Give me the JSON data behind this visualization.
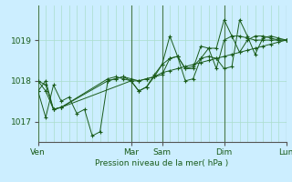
{
  "title": "Pression niveau de la mer( hPa )",
  "bg_color": "#cceeff",
  "grid_color": "#aaddcc",
  "line_color": "#1a5c1a",
  "sep_color": "#4a7a4a",
  "ylim": [
    1016.5,
    1019.85
  ],
  "yticks": [
    1017,
    1018,
    1019
  ],
  "day_labels": [
    "Ven",
    "Mar",
    "Sam",
    "Dim",
    "Lun"
  ],
  "day_positions": [
    0.0,
    0.375,
    0.5,
    0.75,
    1.0
  ],
  "n_steps": 32,
  "series": [
    {
      "x": [
        0,
        1,
        2,
        3,
        4,
        5,
        6,
        7,
        8,
        9,
        10,
        11,
        12,
        13,
        14,
        15,
        16,
        17,
        18,
        19,
        20,
        21,
        22,
        23,
        24,
        25,
        26,
        27,
        28,
        29,
        30,
        31,
        32
      ],
      "y": [
        1017.75,
        1017.1,
        1017.9,
        1017.5,
        1017.6,
        1017.2,
        1017.3,
        1016.65,
        1016.75,
        1018.0,
        1018.05,
        1018.1,
        1018.0,
        1017.75,
        1017.85,
        1018.1,
        1018.4,
        1019.1,
        1018.6,
        1018.0,
        1018.05,
        1018.55,
        1018.6,
        1018.55,
        1018.3,
        1018.35,
        1019.5,
        1019.1,
        1018.65,
        1019.05,
        1019.1,
        1019.05,
        1019.0
      ]
    },
    {
      "x": [
        0,
        1,
        2,
        3,
        12,
        13,
        14,
        15,
        16,
        17,
        18,
        19,
        20,
        21,
        22,
        23,
        24,
        25,
        26,
        27,
        28,
        29,
        30,
        31,
        32
      ],
      "y": [
        1018.0,
        1017.9,
        1017.3,
        1017.35,
        1018.0,
        1017.75,
        1017.85,
        1018.15,
        1018.4,
        1018.55,
        1018.6,
        1018.3,
        1018.35,
        1018.55,
        1018.8,
        1018.8,
        1019.5,
        1019.1,
        1018.7,
        1019.0,
        1019.1,
        1019.1,
        1019.05,
        1019.0,
        1019.0
      ]
    },
    {
      "x": [
        0,
        1,
        2,
        3,
        9,
        10,
        11,
        12,
        13,
        14,
        15,
        16,
        17,
        18,
        19,
        20,
        21,
        22,
        23,
        24,
        25,
        26,
        27,
        28,
        29,
        30,
        31,
        32
      ],
      "y": [
        1018.0,
        1017.75,
        1017.3,
        1017.35,
        1018.05,
        1018.1,
        1018.05,
        1018.0,
        1018.0,
        1018.05,
        1018.1,
        1018.15,
        1018.55,
        1018.6,
        1018.3,
        1018.3,
        1018.85,
        1018.8,
        1018.3,
        1019.0,
        1019.1,
        1019.1,
        1019.05,
        1019.0,
        1019.0,
        1019.0,
        1019.0,
        1019.0
      ]
    },
    {
      "x": [
        0,
        1,
        2,
        3,
        9,
        10,
        11,
        12,
        13,
        14,
        15,
        16,
        17,
        18,
        19,
        20,
        21,
        22,
        23,
        24,
        25,
        26,
        27,
        28,
        29,
        30,
        31,
        32
      ],
      "y": [
        1017.75,
        1018.0,
        1017.3,
        1017.35,
        1018.0,
        1018.05,
        1018.1,
        1018.05,
        1018.0,
        1018.05,
        1018.1,
        1018.2,
        1018.25,
        1018.3,
        1018.35,
        1018.4,
        1018.45,
        1018.5,
        1018.55,
        1018.6,
        1018.65,
        1018.7,
        1018.75,
        1018.8,
        1018.85,
        1018.9,
        1018.95,
        1019.0
      ]
    }
  ],
  "day_x_positions": [
    0,
    12,
    16,
    24,
    32
  ],
  "font_size": 6.5
}
